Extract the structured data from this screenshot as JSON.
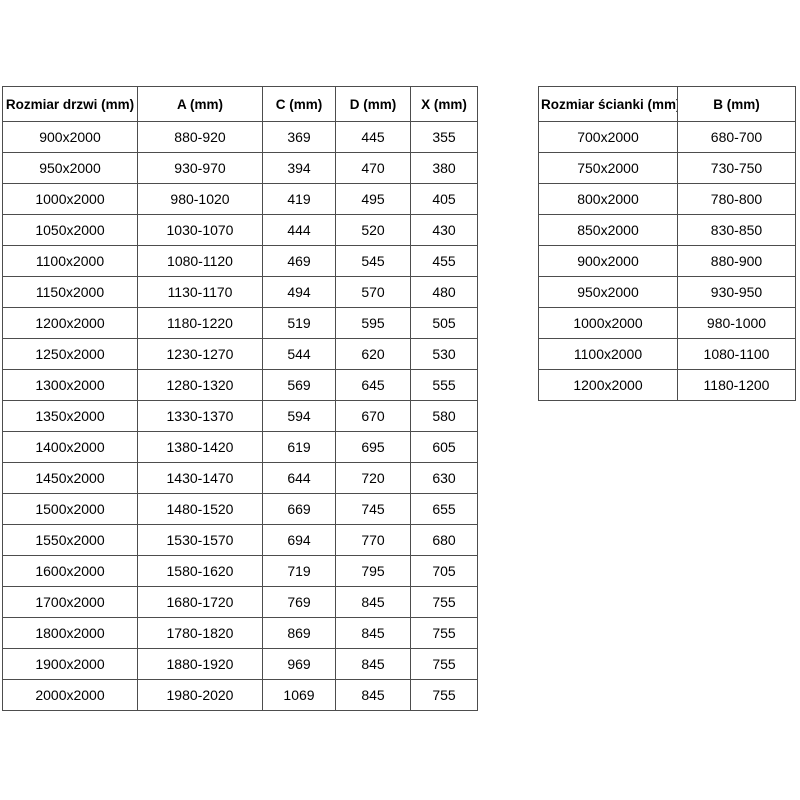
{
  "colors": {
    "background": "#ffffff",
    "border": "#4d4d4d",
    "text": "#000000"
  },
  "door_table": {
    "headers": [
      "Rozmiar drzwi (mm)",
      "A (mm)",
      "C (mm)",
      "D (mm)",
      "X (mm)"
    ],
    "rows": [
      [
        "900x2000",
        "880-920",
        "369",
        "445",
        "355"
      ],
      [
        "950x2000",
        "930-970",
        "394",
        "470",
        "380"
      ],
      [
        "1000x2000",
        "980-1020",
        "419",
        "495",
        "405"
      ],
      [
        "1050x2000",
        "1030-1070",
        "444",
        "520",
        "430"
      ],
      [
        "1100x2000",
        "1080-1120",
        "469",
        "545",
        "455"
      ],
      [
        "1150x2000",
        "1130-1170",
        "494",
        "570",
        "480"
      ],
      [
        "1200x2000",
        "1180-1220",
        "519",
        "595",
        "505"
      ],
      [
        "1250x2000",
        "1230-1270",
        "544",
        "620",
        "530"
      ],
      [
        "1300x2000",
        "1280-1320",
        "569",
        "645",
        "555"
      ],
      [
        "1350x2000",
        "1330-1370",
        "594",
        "670",
        "580"
      ],
      [
        "1400x2000",
        "1380-1420",
        "619",
        "695",
        "605"
      ],
      [
        "1450x2000",
        "1430-1470",
        "644",
        "720",
        "630"
      ],
      [
        "1500x2000",
        "1480-1520",
        "669",
        "745",
        "655"
      ],
      [
        "1550x2000",
        "1530-1570",
        "694",
        "770",
        "680"
      ],
      [
        "1600x2000",
        "1580-1620",
        "719",
        "795",
        "705"
      ],
      [
        "1700x2000",
        "1680-1720",
        "769",
        "845",
        "755"
      ],
      [
        "1800x2000",
        "1780-1820",
        "869",
        "845",
        "755"
      ],
      [
        "1900x2000",
        "1880-1920",
        "969",
        "845",
        "755"
      ],
      [
        "2000x2000",
        "1980-2020",
        "1069",
        "845",
        "755"
      ]
    ]
  },
  "wall_table": {
    "headers": [
      "Rozmiar ścianki (mm)",
      "B (mm)"
    ],
    "rows": [
      [
        "700x2000",
        "680-700"
      ],
      [
        "750x2000",
        "730-750"
      ],
      [
        "800x2000",
        "780-800"
      ],
      [
        "850x2000",
        "830-850"
      ],
      [
        "900x2000",
        "880-900"
      ],
      [
        "950x2000",
        "930-950"
      ],
      [
        "1000x2000",
        "980-1000"
      ],
      [
        "1100x2000",
        "1080-1100"
      ],
      [
        "1200x2000",
        "1180-1200"
      ]
    ]
  }
}
